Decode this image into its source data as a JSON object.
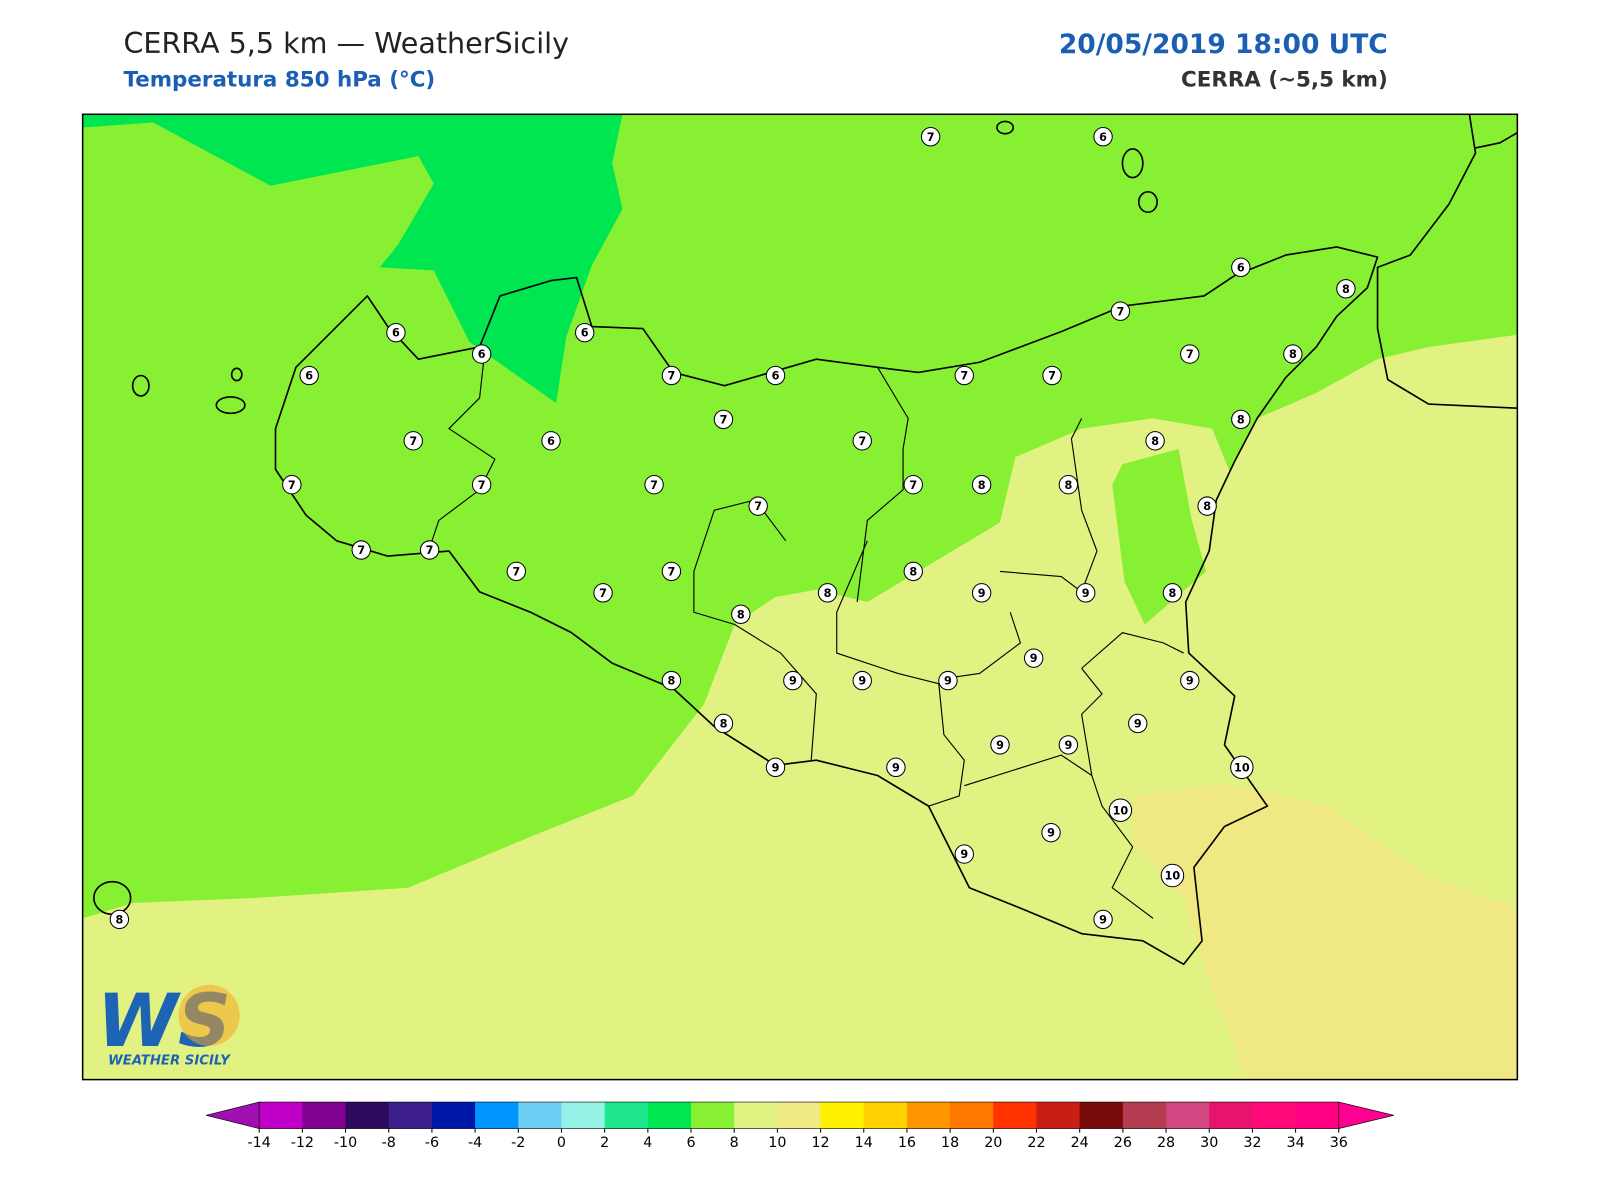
{
  "header": {
    "title": "CERRA 5,5 km — WeatherSicily",
    "subtitle": "Temperatura 850 hPa (°C)",
    "datetime": "20/05/2019 18:00 UTC",
    "model": "CERRA (~5,5 km)"
  },
  "stations": [
    7,
    6,
    6,
    8,
    7,
    7,
    8,
    6,
    6,
    6,
    6,
    7,
    6,
    7,
    7,
    7,
    7,
    7,
    6,
    8,
    8,
    7,
    7,
    7,
    7,
    8,
    8,
    8,
    7,
    7,
    7,
    7,
    7,
    7,
    8,
    8,
    9,
    9,
    8,
    8,
    9,
    8,
    9,
    9,
    9,
    9,
    9,
    8,
    9,
    9,
    10,
    9,
    9,
    10,
    9,
    9,
    10,
    9,
    8
  ],
  "colorbar": {
    "ticks": [
      -14,
      -12,
      -10,
      -8,
      -6,
      -4,
      -2,
      0,
      2,
      4,
      6,
      8,
      10,
      12,
      14,
      16,
      18,
      20,
      22,
      24,
      26,
      28,
      30,
      32,
      34,
      36
    ],
    "colors": [
      "#a010b0",
      "#c000c8",
      "#800090",
      "#2e0a5c",
      "#3c1e8c",
      "#0018a8",
      "#0096ff",
      "#6ecff6",
      "#96f2e6",
      "#1ee68c",
      "#00e650",
      "#88f032",
      "#e1f282",
      "#f0e882",
      "#fff000",
      "#ffd200",
      "#ff9600",
      "#ff7800",
      "#ff3200",
      "#c81e14",
      "#780a0a",
      "#b43c50",
      "#d24682",
      "#e6146e",
      "#ff0a78",
      "#ff0082",
      "#ff0090"
    ]
  },
  "logo": {
    "mark": "WS",
    "text": "WEATHER SICILY"
  }
}
